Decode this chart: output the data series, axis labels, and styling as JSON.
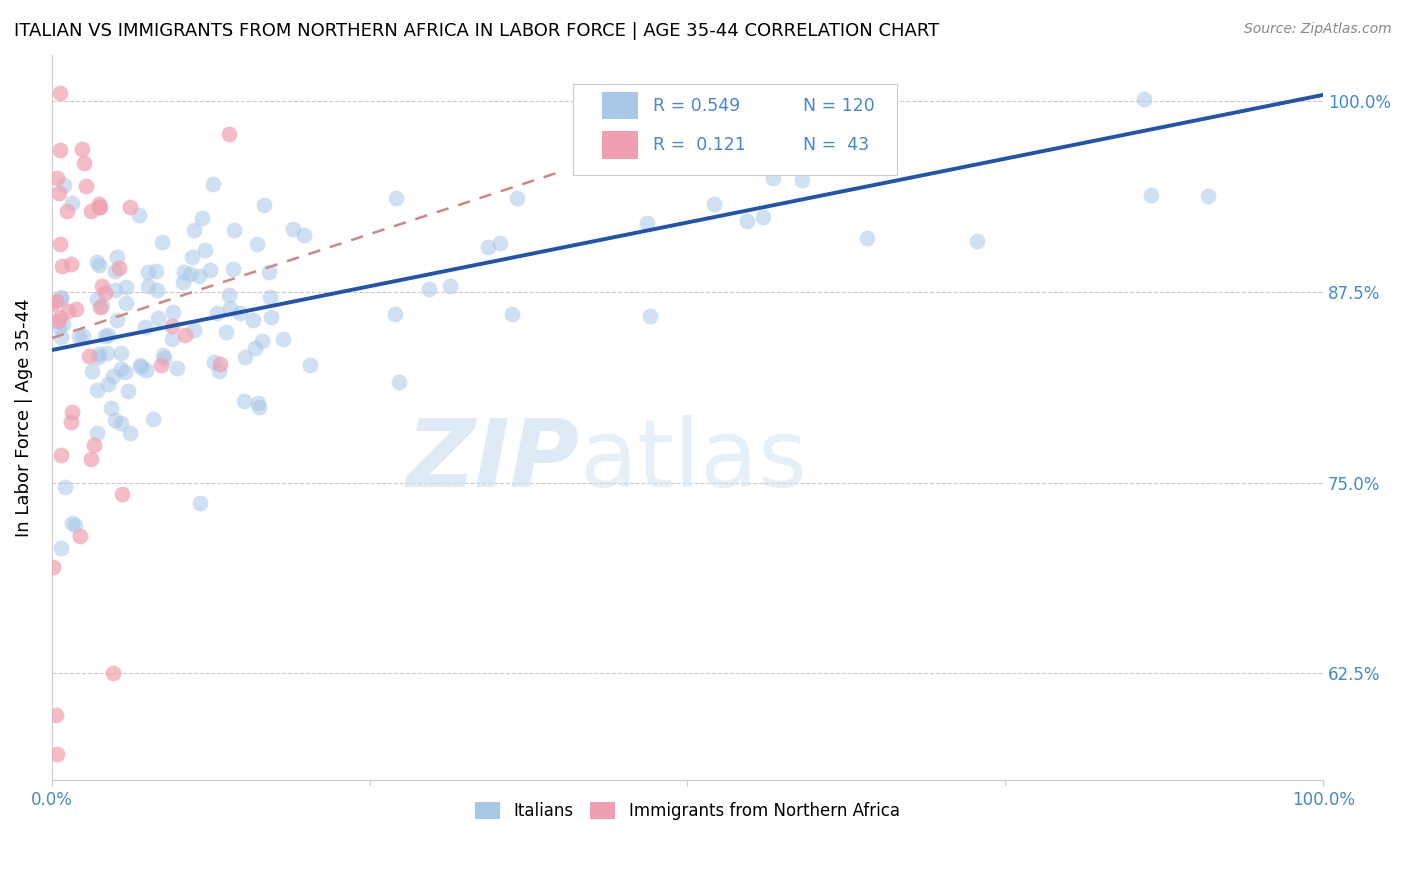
{
  "title": "ITALIAN VS IMMIGRANTS FROM NORTHERN AFRICA IN LABOR FORCE | AGE 35-44 CORRELATION CHART",
  "source": "Source: ZipAtlas.com",
  "ylabel": "In Labor Force | Age 35-44",
  "xlim": [
    0.0,
    1.0
  ],
  "ylim": [
    0.555,
    1.03
  ],
  "yticks": [
    0.625,
    0.75,
    0.875,
    1.0
  ],
  "ytick_labels": [
    "62.5%",
    "75.0%",
    "87.5%",
    "100.0%"
  ],
  "legend_italians": "Italians",
  "legend_immigrants": "Immigrants from Northern Africa",
  "R_italians": 0.549,
  "N_italians": 120,
  "R_immigrants": 0.121,
  "N_immigrants": 43,
  "color_italians": "#a8c8e8",
  "color_immigrants": "#f0a0b0",
  "color_line_italians": "#2255aa",
  "color_line_immigrants": "#cc8888",
  "color_text_blue": "#4488cc",
  "color_axis_label": "#000000",
  "watermark_zip": "ZIP",
  "watermark_atlas": "atlas",
  "background_color": "#ffffff",
  "line_blue_x0": 0.0,
  "line_blue_y0": 0.835,
  "line_blue_x1": 1.0,
  "line_blue_y1": 1.005,
  "line_pink_x0": 0.0,
  "line_pink_y0": 0.875,
  "line_pink_x1": 0.35,
  "line_pink_y1": 0.935
}
